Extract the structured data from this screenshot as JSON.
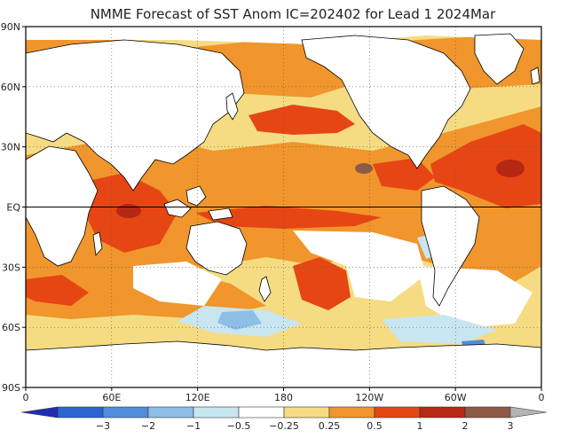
{
  "title": "NMME Forecast of SST Anom IC=202402 for Lead 1 2024Mar",
  "map": {
    "lon_ticks": [
      {
        "label": "0",
        "lon": 0
      },
      {
        "label": "60E",
        "lon": 60
      },
      {
        "label": "120E",
        "lon": 120
      },
      {
        "label": "180",
        "lon": 180
      },
      {
        "label": "120W",
        "lon": 240
      },
      {
        "label": "60W",
        "lon": 300
      },
      {
        "label": "0",
        "lon": 360
      }
    ],
    "lat_ticks": [
      {
        "label": "90N",
        "lat": 90
      },
      {
        "label": "60N",
        "lat": 60
      },
      {
        "label": "30N",
        "lat": 30
      },
      {
        "label": "EQ",
        "lat": 0
      },
      {
        "label": "30S",
        "lat": -30
      },
      {
        "label": "60S",
        "lat": -60
      },
      {
        "label": "90S",
        "lat": -90
      }
    ],
    "lon_range": [
      0,
      360
    ],
    "lat_range": [
      -90,
      90
    ],
    "ocean_color": "#ffffff",
    "land_color": "#ffffff",
    "equator_line": true,
    "grid": "dotted"
  },
  "anomaly_regions": [
    {
      "name": "tropical-indian-ocean",
      "level": "1 to 2",
      "lon": [
        40,
        100
      ],
      "lat": [
        -10,
        15
      ]
    },
    {
      "name": "north-atlantic",
      "level": "1 to 2",
      "lon": [
        290,
        345
      ],
      "lat": [
        0,
        50
      ]
    },
    {
      "name": "north-pacific",
      "level": "1 to 2",
      "lon": [
        150,
        230
      ],
      "lat": [
        30,
        50
      ]
    },
    {
      "name": "equatorial-pacific",
      "level": "0.5 to 1",
      "lon": [
        130,
        280
      ],
      "lat": [
        -5,
        15
      ]
    },
    {
      "name": "southern-ocean",
      "level": "-0.5 to -0.25",
      "lon": [
        180,
        300
      ],
      "lat": [
        -70,
        -30
      ]
    }
  ],
  "colorbar": {
    "ticks": [
      "-3",
      "-2",
      "-1",
      "-0.5",
      "-0.25",
      "0.25",
      "0.5",
      "1",
      "2",
      "3"
    ],
    "colors": [
      "#1e2db4",
      "#2d64d2",
      "#508cdc",
      "#8cbee6",
      "#c8e6f0",
      "#ffffff",
      "#f5dc82",
      "#f0962d",
      "#e64614",
      "#b42814",
      "#8c5a46",
      "#b4b4b4"
    ]
  }
}
